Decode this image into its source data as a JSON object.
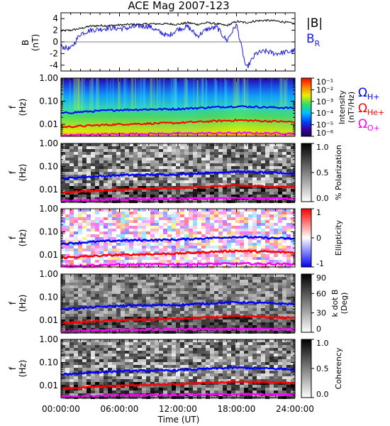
{
  "title": "ACE Mag 2007-123",
  "xlabel": "Time (UT)",
  "xticks": [
    "00:00:00",
    "06:00:00",
    "12:00:00",
    "18:00:00",
    "24:00:00"
  ],
  "colors": {
    "B_total": "#000000",
    "B_R": "#1a1adc",
    "H_plus": "#0000ff",
    "He_plus": "#ff0000",
    "O_plus": "#ff00ff"
  },
  "freq_labels": {
    "H": "Ω_H+",
    "He": "Ω_He+",
    "O": "Ω_O+"
  },
  "panels": {
    "field": {
      "ylabel_top": "B",
      "ylabel_bottom": "(nT)",
      "yticks": [
        "4",
        "2",
        "0",
        "-2",
        "-4"
      ],
      "legend_total": "|B|",
      "legend_radial_main": "B",
      "legend_radial_sub": "R"
    },
    "intensity": {
      "ylabel_top": "f",
      "ylabel_bottom": "(Hz)",
      "yticks": [
        "1.00",
        "0.10",
        "0.01"
      ],
      "cb_label_1": "Intensity",
      "cb_label_2": "(nT²/Hz)",
      "cb_ticks": [
        "10⁻¹",
        "10⁻²",
        "10⁻³",
        "10⁻⁴",
        "10⁻⁵",
        "10⁻⁶"
      ]
    },
    "polarization": {
      "ylabel_top": "f",
      "ylabel_bottom": "(Hz)",
      "yticks": [
        "1.00",
        "0.10",
        "0.01"
      ],
      "cb_label": "% Polarization",
      "cb_ticks": [
        "1.0",
        "0.5",
        "0.0"
      ]
    },
    "ellipticity": {
      "ylabel_top": "f",
      "ylabel_bottom": "(Hz)",
      "yticks": [
        "1.00",
        "0.10",
        "0.01"
      ],
      "cb_label": "Ellipticity",
      "cb_ticks": [
        "1",
        "0",
        "-1"
      ]
    },
    "kdotb": {
      "ylabel_top": "f",
      "ylabel_bottom": "(Hz)",
      "yticks": [
        "1.00",
        "0.10",
        "0.01"
      ],
      "cb_label_1": "k dot B",
      "cb_label_2": "(Deg)",
      "cb_ticks": [
        "90",
        "60",
        "30",
        "0"
      ]
    },
    "coherency": {
      "ylabel_top": "f",
      "ylabel_bottom": "(Hz)",
      "yticks": [
        "1.00",
        "0.10",
        "0.01"
      ],
      "cb_label": "Coherency",
      "cb_ticks": [
        "1.0",
        "0.5",
        "0.0"
      ]
    }
  },
  "chart_data": [
    {
      "type": "line",
      "panel": "field",
      "title": "ACE Mag 2007-123",
      "xlabel": "Time (UT)",
      "ylabel": "B (nT)",
      "x_hours": [
        0,
        1,
        2,
        3,
        4,
        5,
        6,
        7,
        8,
        9,
        10,
        11,
        12,
        13,
        14,
        15,
        16,
        17,
        18,
        19,
        20,
        21,
        22,
        23,
        24
      ],
      "xlim": [
        0,
        24
      ],
      "ylim": [
        -5,
        5
      ],
      "series": [
        {
          "name": "|B|",
          "values": [
            1.9,
            2.0,
            2.3,
            2.7,
            2.8,
            2.8,
            2.9,
            3.0,
            3.0,
            3.1,
            3.1,
            3.1,
            3.0,
            3.3,
            3.0,
            3.3,
            3.1,
            2.8,
            3.5,
            3.3,
            3.6,
            3.7,
            3.6,
            3.4,
            3.1
          ]
        },
        {
          "name": "B_R",
          "values": [
            -0.8,
            -1.2,
            1.4,
            2.0,
            2.2,
            2.4,
            2.3,
            2.4,
            2.7,
            2.7,
            1.8,
            1.0,
            2.2,
            2.6,
            1.0,
            2.2,
            2.5,
            0.2,
            3.0,
            -4.6,
            -2.0,
            -1.6,
            -2.0,
            -1.8,
            -1.5
          ]
        }
      ]
    },
    {
      "type": "heatmap",
      "panel": "intensity",
      "ylabel": "f (Hz)",
      "y_scale": "log",
      "ylim": [
        0.003,
        1.0
      ],
      "colorbar": {
        "label": "Intensity (nT²/Hz)",
        "scale": "log",
        "range": [
          1e-06,
          0.1
        ]
      },
      "lines": [
        {
          "name": "Ω_H+",
          "x_hours": [
            0,
            6,
            12,
            18,
            24
          ],
          "values": [
            0.03,
            0.042,
            0.046,
            0.06,
            0.05
          ]
        },
        {
          "name": "Ω_He+",
          "x_hours": [
            0,
            6,
            12,
            18,
            24
          ],
          "values": [
            0.0075,
            0.01,
            0.0115,
            0.015,
            0.0125
          ]
        },
        {
          "name": "Ω_O+",
          "x_hours": [
            0,
            6,
            12,
            18,
            24
          ],
          "values": [
            0.0033,
            0.0038,
            0.004,
            0.0042,
            0.004
          ]
        }
      ]
    },
    {
      "type": "heatmap",
      "panel": "polarization",
      "ylabel": "f (Hz)",
      "y_scale": "log",
      "ylim": [
        0.003,
        1.0
      ],
      "colorbar": {
        "label": "% Polarization",
        "range": [
          0,
          1
        ]
      }
    },
    {
      "type": "heatmap",
      "panel": "ellipticity",
      "ylabel": "f (Hz)",
      "y_scale": "log",
      "ylim": [
        0.003,
        1.0
      ],
      "colorbar": {
        "label": "Ellipticity",
        "range": [
          -1,
          1
        ]
      }
    },
    {
      "type": "heatmap",
      "panel": "kdotb",
      "ylabel": "f (Hz)",
      "y_scale": "log",
      "ylim": [
        0.003,
        1.0
      ],
      "colorbar": {
        "label": "k dot B (Deg)",
        "range": [
          0,
          90
        ]
      }
    },
    {
      "type": "heatmap",
      "panel": "coherency",
      "ylabel": "f (Hz)",
      "y_scale": "log",
      "ylim": [
        0.003,
        1.0
      ],
      "colorbar": {
        "label": "Coherency",
        "range": [
          0,
          1
        ]
      }
    }
  ]
}
